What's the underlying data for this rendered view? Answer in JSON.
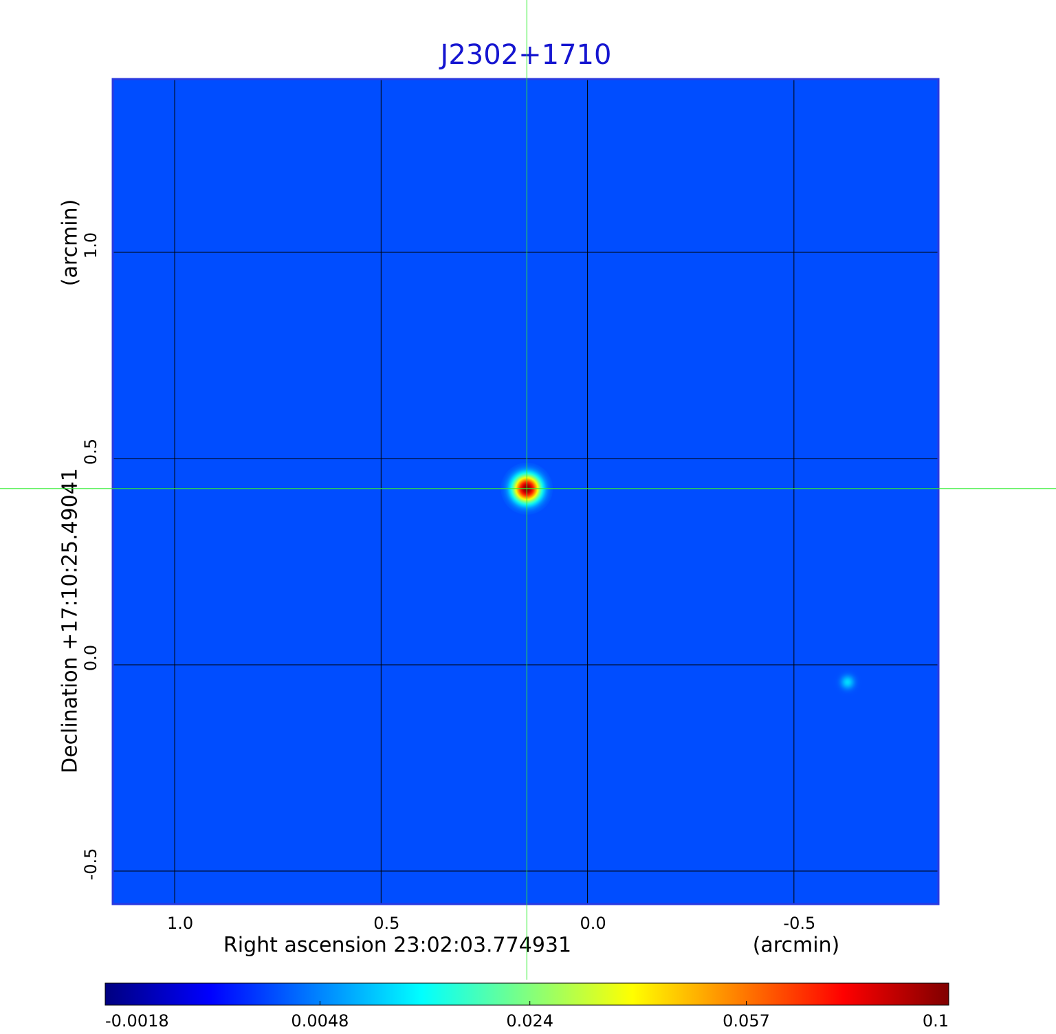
{
  "chart_data": {
    "type": "image",
    "title": "J2302+1710",
    "xlabel": "Right ascension  23:02:03.774931",
    "xunit": "(arcmin)",
    "ylabel": "Declination  +17:10:25.49041",
    "yunit": "(arcmin)",
    "xlim": [
      1.15,
      -0.85
    ],
    "ylim": [
      -0.58,
      1.42
    ],
    "xticks": [
      {
        "value": 1,
        "label": "1.0"
      },
      0.5,
      {
        "value": 0,
        "label": "0.0"
      },
      -0.5
    ],
    "yticks": [
      -0.5,
      {
        "value": 0,
        "label": "0.0"
      },
      0.5,
      {
        "value": 1,
        "label": "1.0"
      }
    ],
    "grid": true,
    "colormap": "jet",
    "colorscale": "sqrt",
    "clim": [
      -0.0018,
      0.1
    ],
    "cticks": [
      -0.0018,
      0.0048,
      0.024,
      0.057,
      0.1
    ],
    "background": 0.0023,
    "sources": {
      "x": [
        0.147,
        -0.63
      ],
      "y": [
        0.427,
        -0.042
      ],
      "peak": [
        0.1,
        0.01
      ]
    },
    "crosshair": {
      "x": 0.147,
      "y": 0.427,
      "color": "#33ee33"
    }
  }
}
